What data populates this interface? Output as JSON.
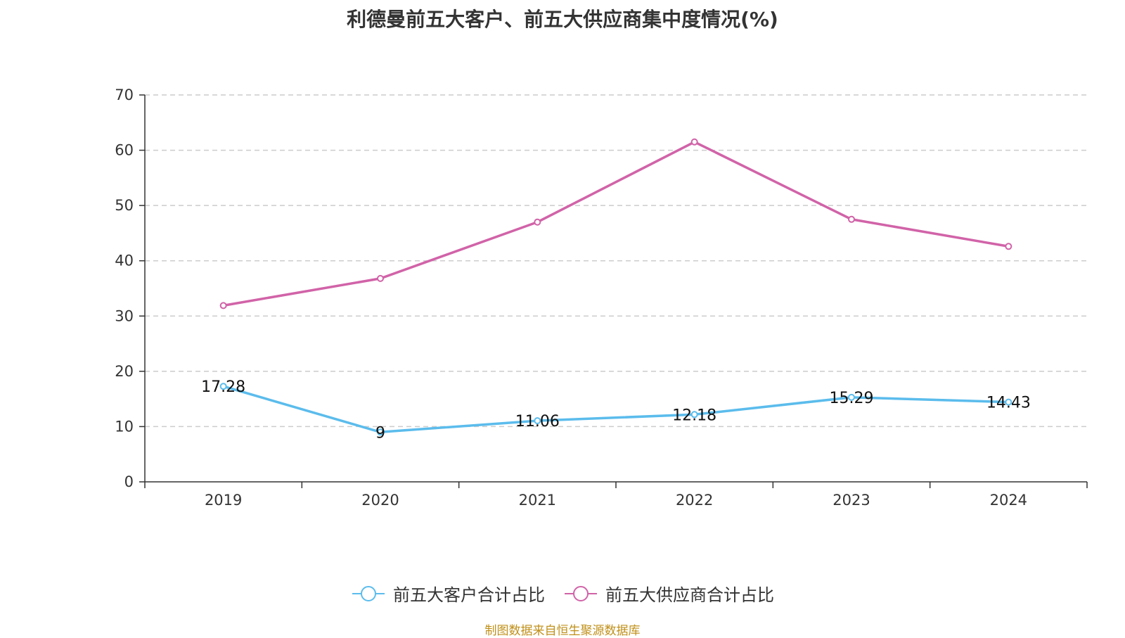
{
  "chart_data": {
    "type": "line",
    "title": "利德曼前五大客户、前五大供应商集中度情况(%)",
    "xlabel": "",
    "ylabel": "",
    "categories": [
      "2019",
      "2020",
      "2021",
      "2022",
      "2023",
      "2024"
    ],
    "ylim": [
      0,
      70
    ],
    "yticks": [
      "0",
      "10",
      "20",
      "30",
      "40",
      "50",
      "60",
      "70"
    ],
    "grid": true,
    "legend_position": "bottom",
    "series": [
      {
        "name": "前五大客户合计占比",
        "values": [
          17.28,
          9,
          11.06,
          12.18,
          15.29,
          14.43
        ],
        "labels": [
          "17.28",
          "9",
          "11.06",
          "12.18",
          "15.29",
          "14.43"
        ],
        "color": "#5bbcec"
      },
      {
        "name": "前五大供应商合计占比",
        "values": [
          31.9,
          36.8,
          47.0,
          61.5,
          47.5,
          42.6
        ],
        "color": "#d163a8"
      }
    ]
  },
  "footer": {
    "source": "制图数据来自恒生聚源数据库"
  }
}
